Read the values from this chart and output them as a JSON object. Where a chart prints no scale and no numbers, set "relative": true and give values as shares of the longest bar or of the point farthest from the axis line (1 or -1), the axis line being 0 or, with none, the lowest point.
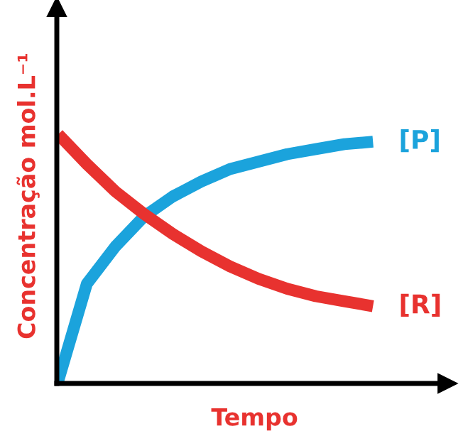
{
  "chart_data": {
    "type": "line",
    "relative": true,
    "xlabel": "Tempo",
    "ylabel": "Concentração mol.L⁻¹",
    "categories": [
      null,
      null,
      null,
      null,
      null,
      null,
      null,
      null,
      null,
      null,
      null,
      null
    ],
    "series": [
      {
        "name": "[P]",
        "color": "#1ba3dc",
        "values": [
          0.01,
          0.4,
          0.55,
          0.67,
          0.75,
          0.81,
          0.86,
          0.89,
          0.92,
          0.94,
          0.96,
          0.97
        ]
      },
      {
        "name": "[R]",
        "color": "#e8322f",
        "values": [
          1.0,
          0.88,
          0.77,
          0.68,
          0.6,
          0.53,
          0.47,
          0.42,
          0.38,
          0.35,
          0.33,
          0.31
        ]
      }
    ],
    "tick_labels": false,
    "legend": false,
    "marker": "none",
    "line_style": "solid"
  }
}
